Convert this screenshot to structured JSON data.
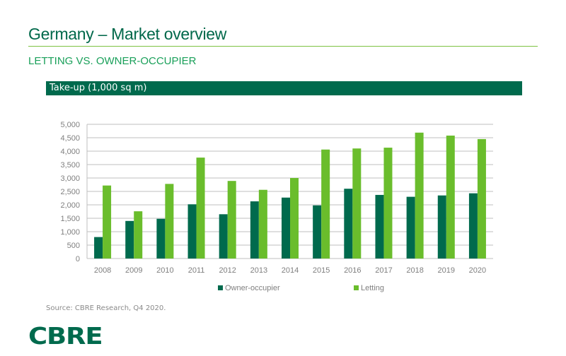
{
  "header": {
    "title": "Germany – Market overview",
    "subtitle": "LETTING VS. OWNER-OCCUPIER"
  },
  "chart_header": "Take-up (1,000 sq m)",
  "source": "Source: CBRE Research, Q4 2020.",
  "logo": "CBRE",
  "colors": {
    "owner": "#006a4d",
    "letting": "#6abd2c",
    "grid": "#bfbfbf"
  },
  "chart_data": {
    "type": "bar",
    "title": "Take-up (1,000 sq m)",
    "xlabel": "",
    "ylabel": "",
    "ylim": [
      0,
      5000
    ],
    "yticks": [
      0,
      500,
      1000,
      1500,
      2000,
      2500,
      3000,
      3500,
      4000,
      4500,
      5000
    ],
    "ytick_labels": [
      "0",
      "500",
      "1,000",
      "1,500",
      "2,000",
      "2,500",
      "3,000",
      "3,500",
      "4,000",
      "4,500",
      "5,000"
    ],
    "categories": [
      "2008",
      "2009",
      "2010",
      "2011",
      "2012",
      "2013",
      "2014",
      "2015",
      "2016",
      "2017",
      "2018",
      "2019",
      "2020"
    ],
    "series": [
      {
        "name": "Owner-occupier",
        "values": [
          800,
          1400,
          1480,
          2020,
          1650,
          2130,
          2270,
          1980,
          2600,
          2370,
          2300,
          2350,
          2430
        ]
      },
      {
        "name": "Letting",
        "values": [
          2720,
          1760,
          2780,
          3760,
          2890,
          2560,
          3000,
          4060,
          4100,
          4130,
          4690,
          4580,
          4450
        ]
      }
    ],
    "grid": true,
    "legend": "bottom"
  }
}
